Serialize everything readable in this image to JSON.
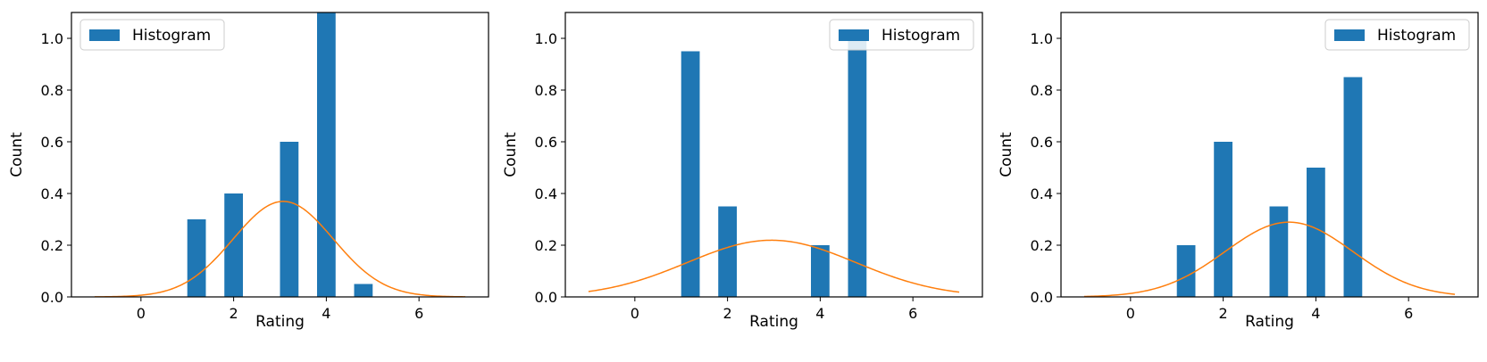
{
  "chart_data": [
    {
      "type": "bar",
      "xlabel": "Rating",
      "ylabel": "Count",
      "xlim": [
        -1.5,
        7.5
      ],
      "ylim": [
        0,
        1.1
      ],
      "xticks": [
        "0",
        "2",
        "4",
        "6"
      ],
      "yticks": [
        "0.0",
        "0.2",
        "0.4",
        "0.6",
        "0.8",
        "1.0"
      ],
      "legend": {
        "label": "Histogram",
        "placement": "top-left"
      },
      "bar_width": 0.4,
      "bars": [
        {
          "x": 1.2,
          "value": 0.3
        },
        {
          "x": 2.0,
          "value": 0.4
        },
        {
          "x": 3.2,
          "value": 0.6
        },
        {
          "x": 4.0,
          "value": 1.1
        },
        {
          "x": 4.8,
          "value": 0.05
        }
      ],
      "curve": {
        "type": "normal-density",
        "mean": 3.07,
        "std": 1.08,
        "x_range": [
          -1,
          7
        ]
      }
    },
    {
      "type": "bar",
      "xlabel": "Rating",
      "ylabel": "Count",
      "xlim": [
        -1.5,
        7.5
      ],
      "ylim": [
        0,
        1.1
      ],
      "xticks": [
        "0",
        "2",
        "4",
        "6"
      ],
      "yticks": [
        "0.0",
        "0.2",
        "0.4",
        "0.6",
        "0.8",
        "1.0"
      ],
      "legend": {
        "label": "Histogram",
        "placement": "top-right"
      },
      "bar_width": 0.4,
      "bars": [
        {
          "x": 1.2,
          "value": 0.95
        },
        {
          "x": 2.0,
          "value": 0.35
        },
        {
          "x": 4.0,
          "value": 0.2
        },
        {
          "x": 4.8,
          "value": 1.0
        }
      ],
      "curve": {
        "type": "normal-density",
        "mean": 2.95,
        "std": 1.82,
        "x_range": [
          -1,
          7
        ]
      }
    },
    {
      "type": "bar",
      "xlabel": "Rating",
      "ylabel": "Count",
      "xlim": [
        -1.5,
        7.5
      ],
      "ylim": [
        0,
        1.1
      ],
      "xticks": [
        "0",
        "2",
        "4",
        "6"
      ],
      "yticks": [
        "0.0",
        "0.2",
        "0.4",
        "0.6",
        "0.8",
        "1.0"
      ],
      "legend": {
        "label": "Histogram",
        "placement": "top-right"
      },
      "bar_width": 0.4,
      "bars": [
        {
          "x": 1.2,
          "value": 0.2
        },
        {
          "x": 2.0,
          "value": 0.6
        },
        {
          "x": 3.2,
          "value": 0.35
        },
        {
          "x": 4.0,
          "value": 0.5
        },
        {
          "x": 4.8,
          "value": 0.85
        }
      ],
      "curve": {
        "type": "normal-density",
        "mean": 3.42,
        "std": 1.38,
        "x_range": [
          -1,
          7
        ]
      }
    }
  ],
  "colors": {
    "bar": "#1f77b4",
    "curve": "#ff7f0e",
    "axis": "#000000",
    "legend_border": "#cccccc"
  }
}
